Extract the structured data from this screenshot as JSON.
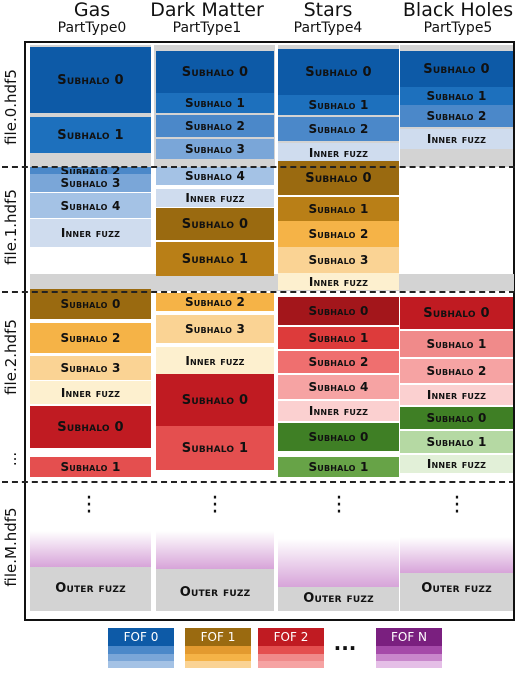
{
  "headers": [
    {
      "title": "Gas",
      "sub": "PartType0"
    },
    {
      "title": "Dark Matter",
      "sub": "PartType1"
    },
    {
      "title": "Stars",
      "sub": "PartType4"
    },
    {
      "title": "Black Holes",
      "sub": "PartType5"
    }
  ],
  "file_labels": [
    "file.0.hdf5",
    "file.1.hdf5",
    "file.2.hdf5",
    "...",
    "file.M.hdf5"
  ],
  "cols": [
    [
      {
        "t": "Subhalo 0",
        "c": "#0d5aa7"
      },
      {
        "t": "Subhalo 1",
        "c": "#1d70bd"
      },
      {
        "t": "Subhalo 2",
        "c": "#4b88c9"
      },
      {
        "t": "Subhalo 3",
        "c": "#7aa6d8"
      },
      {
        "t": "Subhalo 4",
        "c": "#a4c2e5"
      },
      {
        "t": "Inner fuzz",
        "c": "#cfdcee"
      },
      {
        "t": "Subhalo 0",
        "c": "#9a6a10"
      },
      {
        "t": "Subhalo 2",
        "c": "#f5b347"
      },
      {
        "t": "Subhalo 3",
        "c": "#fad394"
      },
      {
        "t": "Inner fuzz",
        "c": "#fdf0cf"
      },
      {
        "t": "Subhalo 0",
        "c": "#c01b22"
      },
      {
        "t": "Subhalo 1",
        "c": "#e44f4f"
      }
    ],
    [
      {
        "t": "Subhalo 0",
        "c": "#0d5aa7"
      },
      {
        "t": "Subhalo 1",
        "c": "#1d70bd"
      },
      {
        "t": "Subhalo 2",
        "c": "#4b88c9"
      },
      {
        "t": "Subhalo 3",
        "c": "#7aa6d8"
      },
      {
        "t": "Subhalo 4",
        "c": "#a4c2e5"
      },
      {
        "t": "Inner fuzz",
        "c": "#cfdcee"
      },
      {
        "t": "Subhalo 0",
        "c": "#9a6a10"
      },
      {
        "t": "Subhalo 1",
        "c": "#b97f17"
      },
      {
        "t": "Subhalo 2",
        "c": "#f5b347"
      },
      {
        "t": "Subhalo 3",
        "c": "#fad394"
      },
      {
        "t": "Inner fuzz",
        "c": "#fdf0cf"
      },
      {
        "t": "Subhalo 0",
        "c": "#c01b22"
      },
      {
        "t": "Subhalo 1",
        "c": "#e44f4f"
      }
    ],
    [
      {
        "t": "Subhalo 0",
        "c": "#0d5aa7"
      },
      {
        "t": "Subhalo 1",
        "c": "#1d70bd"
      },
      {
        "t": "Subhalo 2",
        "c": "#4b88c9"
      },
      {
        "t": "Inner fuzz",
        "c": "#cfdcee"
      },
      {
        "t": "Subhalo 0",
        "c": "#9a6a10"
      },
      {
        "t": "Subhalo 1",
        "c": "#b97f17"
      },
      {
        "t": "Subhalo 2",
        "c": "#f5b347"
      },
      {
        "t": "Subhalo 3",
        "c": "#fad394"
      },
      {
        "t": "Inner fuzz",
        "c": "#fdf0cf"
      },
      {
        "t": "Subhalo 0",
        "c": "#a3161b"
      },
      {
        "t": "Subhalo 1",
        "c": "#dd3b3b"
      },
      {
        "t": "Subhalo 2",
        "c": "#ef6f6f"
      },
      {
        "t": "Subhalo 4",
        "c": "#f6a3a3"
      },
      {
        "t": "Inner fuzz",
        "c": "#fbd0d0"
      },
      {
        "t": "Subhalo 0",
        "c": "#3f7f25"
      },
      {
        "t": "Subhalo 1",
        "c": "#67a347"
      }
    ],
    [
      {
        "t": "Subhalo 0",
        "c": "#0d5aa7"
      },
      {
        "t": "Subhalo 1",
        "c": "#1d70bd"
      },
      {
        "t": "Subhalo 2",
        "c": "#4b88c9"
      },
      {
        "t": "Inner fuzz",
        "c": "#cfdcee"
      },
      {
        "t": "Subhalo 0",
        "c": "#c01b22"
      },
      {
        "t": "Subhalo 1",
        "c": "#f08a8a"
      },
      {
        "t": "Subhalo 2",
        "c": "#f6a3a3"
      },
      {
        "t": "Inner fuzz",
        "c": "#fbd0d0"
      },
      {
        "t": "Subhalo 0",
        "c": "#3f7f25"
      },
      {
        "t": "Subhalo 1",
        "c": "#b5d9a3"
      },
      {
        "t": "Inner fuzz",
        "c": "#e2f0d8"
      }
    ]
  ],
  "outer_fuzz": "Outer fuzz",
  "legend": [
    {
      "label": "FOF 0",
      "colors": [
        "#0d5aa7",
        "#4b88c9",
        "#7aa6d8",
        "#a4c2e5"
      ]
    },
    {
      "label": "FOF 1",
      "colors": [
        "#9a6a10",
        "#e39a2f",
        "#f5b347",
        "#fad394"
      ]
    },
    {
      "label": "FOF 2",
      "colors": [
        "#c01b22",
        "#e44f4f",
        "#f08a8a",
        "#f6a3a3"
      ]
    },
    {
      "label": "FOF N",
      "colors": [
        "#7a1f7f",
        "#a54aa9",
        "#c987cc",
        "#e5bfe7"
      ]
    }
  ],
  "legend_ellipsis": "..."
}
